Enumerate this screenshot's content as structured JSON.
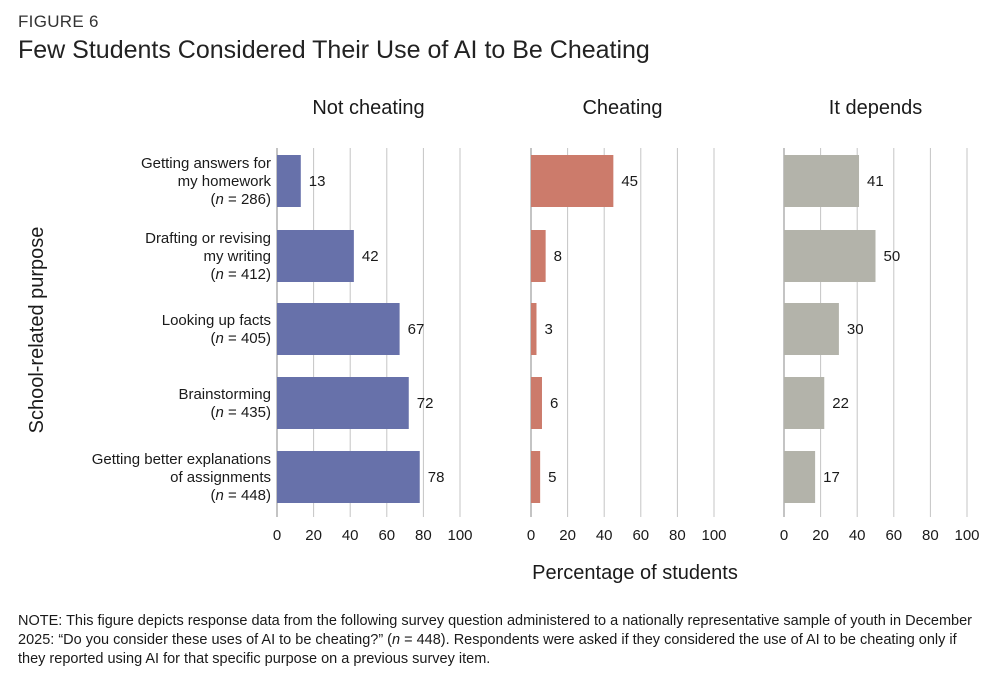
{
  "figure": {
    "label": "FIGURE 6",
    "title": "Few Students Considered Their Use of AI to Be Cheating"
  },
  "chart_data": {
    "type": "bar",
    "orientation": "horizontal",
    "ylabel": "School-related purpose",
    "xlabel": "Percentage of students",
    "xlim": [
      0,
      100
    ],
    "xticks": [
      "0",
      "20",
      "40",
      "60",
      "80",
      "100"
    ],
    "categories": [
      {
        "lines": [
          "Getting answers for",
          "my homework"
        ],
        "n": "286"
      },
      {
        "lines": [
          "Drafting or revising",
          "my writing"
        ],
        "n": "412"
      },
      {
        "lines": [
          "Looking up facts"
        ],
        "n": "405"
      },
      {
        "lines": [
          "Brainstorming"
        ],
        "n": "435"
      },
      {
        "lines": [
          "Getting better explanations",
          "of assignments"
        ],
        "n": "448"
      }
    ],
    "series": [
      {
        "name": "Not cheating",
        "color": "#6771aa",
        "values": [
          13,
          42,
          67,
          72,
          78
        ]
      },
      {
        "name": "Cheating",
        "color": "#cc7b6b",
        "values": [
          45,
          8,
          3,
          6,
          5
        ]
      },
      {
        "name": "It depends",
        "color": "#b3b3aa",
        "values": [
          41,
          50,
          30,
          22,
          17
        ]
      }
    ],
    "grid": true
  },
  "note": {
    "part1": "NOTE: This figure depicts response data from the following survey question administered to a nationally representative sample of youth in December 2025: “Do you consider these uses of AI to be cheating?” (",
    "n_symbol": "n",
    "part2": " = 448). Respondents were asked if they considered the use of AI to be cheating only if they reported using AI for that specific purpose on a previous survey item."
  }
}
